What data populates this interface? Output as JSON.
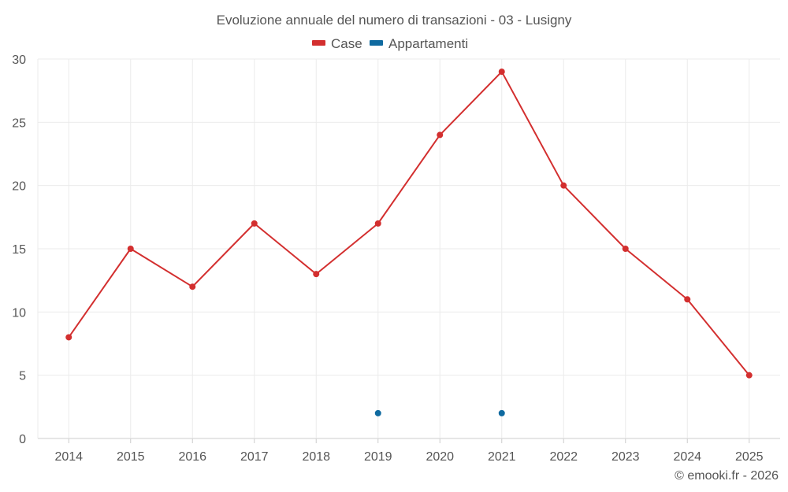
{
  "chart_data": {
    "type": "line",
    "title": "Evoluzione annuale del numero di transazioni - 03 - Lusigny",
    "categories": [
      "2014",
      "2015",
      "2016",
      "2017",
      "2018",
      "2019",
      "2020",
      "2021",
      "2022",
      "2023",
      "2024",
      "2025"
    ],
    "series": [
      {
        "name": "Case",
        "color": "#d32f2f",
        "values": [
          8,
          15,
          12,
          17,
          13,
          17,
          24,
          29,
          20,
          15,
          11,
          5
        ]
      },
      {
        "name": "Appartamenti",
        "color": "#0f6aa0",
        "values": [
          null,
          null,
          null,
          null,
          null,
          2,
          null,
          2,
          null,
          null,
          null,
          null
        ]
      }
    ],
    "ylim": [
      0,
      30
    ],
    "yticks": [
      0,
      5,
      10,
      15,
      20,
      25,
      30
    ],
    "xlabel": "",
    "ylabel": "",
    "grid": true,
    "legend_position": "top-center"
  },
  "credit": "© emooki.fr - 2026"
}
